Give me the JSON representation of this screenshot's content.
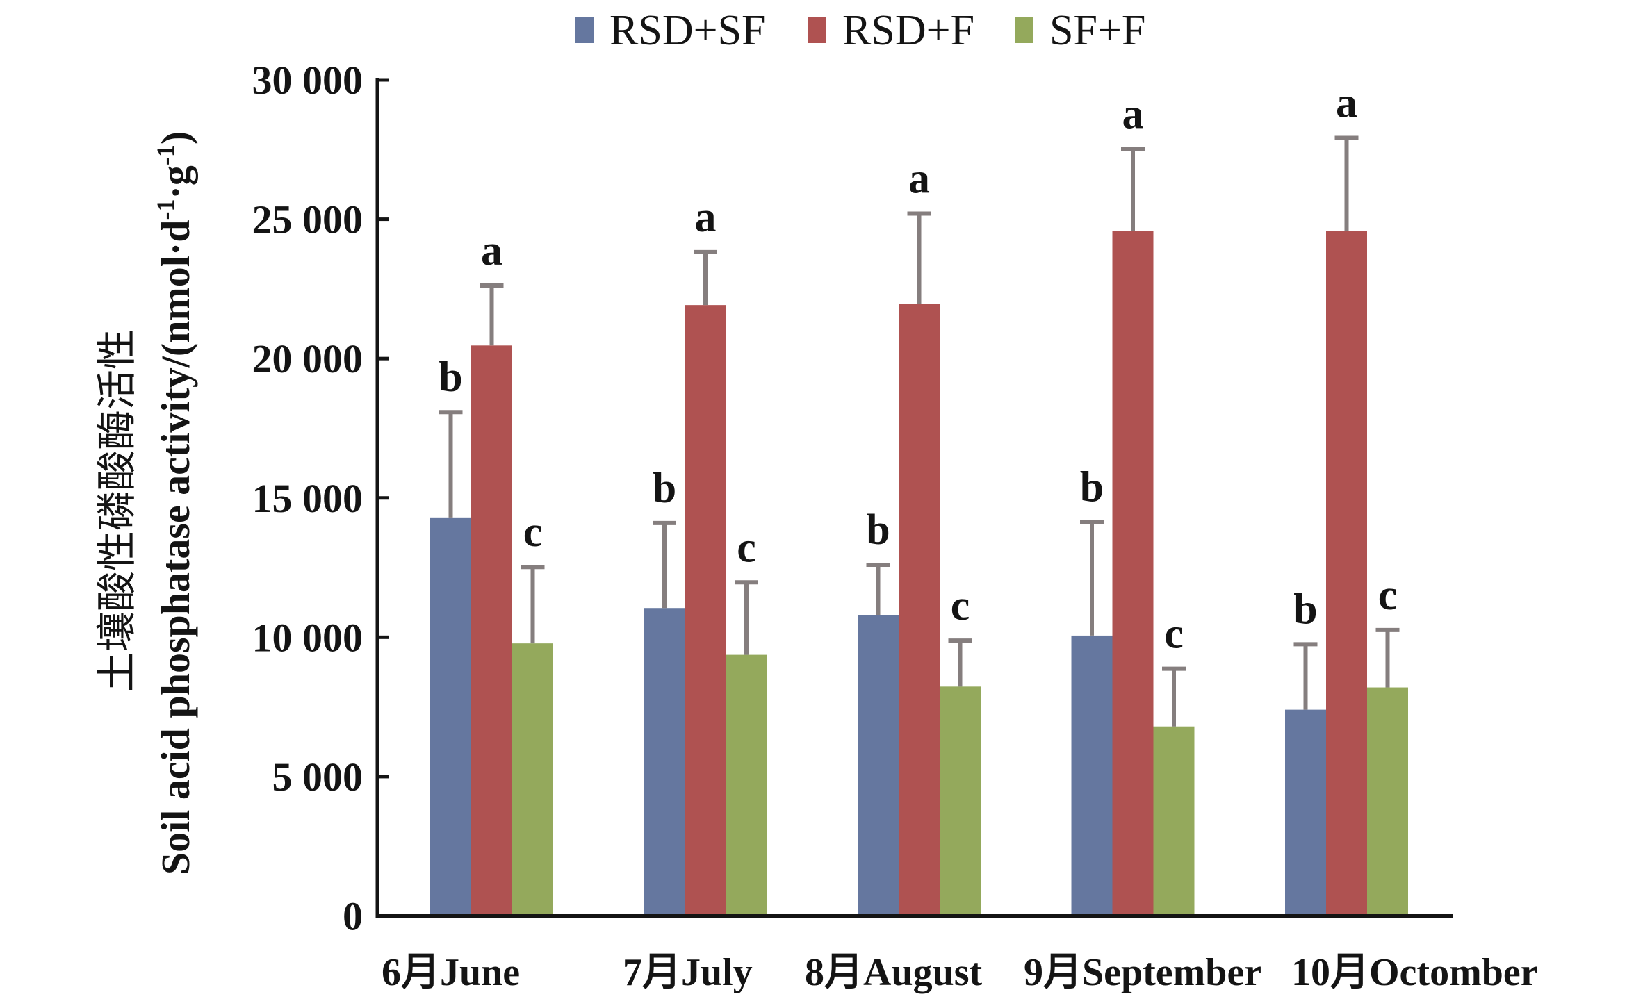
{
  "chart_data": {
    "type": "bar",
    "title": "",
    "xlabel": "",
    "ylabel_cn": "土壤酸性磷酸酶活性",
    "ylabel_en": "Soil acid phosphatase activity/(nmol·d",
    "ylabel_unit_parts": [
      "-1",
      "·g",
      "-1",
      ")"
    ],
    "ylim": [
      0,
      30000
    ],
    "yticks": [
      0,
      5000,
      10000,
      15000,
      20000,
      25000,
      30000
    ],
    "ytick_labels": [
      "0",
      "5 000",
      "10 000",
      "15 000",
      "20 000",
      "25 000",
      "30 000"
    ],
    "categories": [
      "6月June",
      "7月July",
      "8月August",
      "9月September",
      "10月Octomber"
    ],
    "legend_position": "top",
    "grid": false,
    "series": [
      {
        "name": "RSD+SF",
        "color": "#65779f",
        "values": [
          14300,
          11050,
          10800,
          10060,
          7400
        ],
        "error_upper": [
          18080,
          14100,
          12600,
          14130,
          9750
        ],
        "significance": [
          "b",
          "b",
          "b",
          "b",
          "b"
        ]
      },
      {
        "name": "RSD+F",
        "color": "#af5251",
        "values": [
          20470,
          21920,
          21950,
          24570,
          24570
        ],
        "error_upper": [
          22620,
          23820,
          25200,
          27520,
          27920
        ],
        "significance": [
          "a",
          "a",
          "a",
          "a",
          "a"
        ]
      },
      {
        "name": "SF+F",
        "color": "#94a95c",
        "values": [
          9780,
          9370,
          8230,
          6800,
          8200
        ],
        "error_upper": [
          12520,
          11970,
          9880,
          8870,
          10260
        ],
        "significance": [
          "c",
          "c",
          "c",
          "c",
          "c"
        ]
      }
    ],
    "error_bar_color": "#857e7e",
    "axis_color": "#141414"
  }
}
